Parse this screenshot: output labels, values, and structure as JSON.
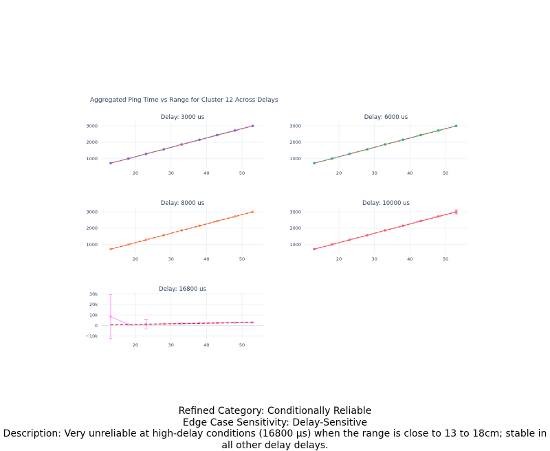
{
  "figure": {
    "title": "Aggregated Ping Time vs Range for Cluster 12 Across Delays"
  },
  "caption": {
    "category": "Refined Category: Conditionally Reliable",
    "sensitivity": "Edge Case Sensitivity: Delay-Sensitive",
    "description": "Description: Very unreliable at high-delay conditions (16800 µs) when the range is close to 13 to 18cm; stable in all other delay delays."
  },
  "chart_data": [
    {
      "type": "line",
      "title": "Delay: 3000 us",
      "x": [
        13,
        18,
        23,
        28,
        33,
        38,
        43,
        48,
        53
      ],
      "xlim": [
        10.5,
        56
      ],
      "xticks": [
        20,
        30,
        40,
        50
      ],
      "xtick_labels": [
        "20",
        "30",
        "40",
        "50"
      ],
      "ylim": [
        400,
        3300
      ],
      "yticks": [
        1000,
        2000,
        3000
      ],
      "ytick_labels": [
        "1000",
        "2000",
        "3000"
      ],
      "grid": true,
      "series": [
        {
          "values": [
            720,
            1000,
            1290,
            1570,
            1870,
            2150,
            2440,
            2720,
            3000
          ],
          "color": "#636efa",
          "style": "markers+line"
        },
        {
          "values": [
            720,
            1000,
            1290,
            1570,
            1860,
            2140,
            2430,
            2710,
            3000
          ],
          "color": "#ef553b",
          "style": "dash"
        }
      ]
    },
    {
      "type": "line",
      "title": "Delay: 6000 us",
      "x": [
        13,
        18,
        23,
        28,
        33,
        38,
        43,
        48,
        53
      ],
      "xlim": [
        10.5,
        56
      ],
      "xticks": [
        20,
        30,
        40,
        50
      ],
      "xtick_labels": [
        "20",
        "30",
        "40",
        "50"
      ],
      "ylim": [
        400,
        3300
      ],
      "yticks": [
        1000,
        2000,
        3000
      ],
      "ytick_labels": [
        "1000",
        "2000",
        "3000"
      ],
      "grid": true,
      "series": [
        {
          "values": [
            720,
            1000,
            1290,
            1570,
            1870,
            2150,
            2440,
            2720,
            3000
          ],
          "color": "#00cc96",
          "style": "markers+line"
        },
        {
          "values": [
            720,
            1000,
            1290,
            1570,
            1860,
            2140,
            2430,
            2710,
            3000
          ],
          "color": "#ef553b",
          "style": "dash"
        }
      ]
    },
    {
      "type": "line",
      "title": "Delay: 8000 us",
      "x": [
        13,
        18,
        23,
        28,
        33,
        38,
        43,
        48,
        53
      ],
      "xlim": [
        10.5,
        56
      ],
      "xticks": [
        20,
        30,
        40,
        50
      ],
      "xtick_labels": [
        "20",
        "30",
        "40",
        "50"
      ],
      "ylim": [
        400,
        3300
      ],
      "yticks": [
        1000,
        2000,
        3000
      ],
      "ytick_labels": [
        "1000",
        "2000",
        "3000"
      ],
      "grid": true,
      "series": [
        {
          "values": [
            720,
            1000,
            1290,
            1570,
            1870,
            2150,
            2440,
            2720,
            3000
          ],
          "color": "#ffa15a",
          "style": "markers+line"
        },
        {
          "values": [
            720,
            1000,
            1290,
            1570,
            1860,
            2140,
            2430,
            2710,
            3000
          ],
          "color": "#ef553b",
          "style": "dash"
        }
      ]
    },
    {
      "type": "line",
      "title": "Delay: 10000 us",
      "x": [
        13,
        18,
        23,
        28,
        33,
        38,
        43,
        48,
        53
      ],
      "xlim": [
        10.5,
        56
      ],
      "xticks": [
        20,
        30,
        40,
        50
      ],
      "xtick_labels": [
        "20",
        "30",
        "40",
        "50"
      ],
      "ylim": [
        400,
        3300
      ],
      "yticks": [
        1000,
        2000,
        3000
      ],
      "ytick_labels": [
        "1000",
        "2000",
        "3000"
      ],
      "grid": true,
      "series": [
        {
          "values": [
            720,
            1000,
            1290,
            1570,
            1870,
            2150,
            2440,
            2720,
            3000
          ],
          "color": "#ff6692",
          "style": "markers+line",
          "error": [
            0,
            0,
            0,
            0,
            0,
            0,
            0,
            0,
            120
          ]
        },
        {
          "values": [
            720,
            1000,
            1290,
            1570,
            1860,
            2140,
            2430,
            2710,
            3000
          ],
          "color": "#ef553b",
          "style": "dash"
        }
      ]
    },
    {
      "type": "line",
      "title": "Delay: 16800 us",
      "x": [
        13,
        18,
        23,
        28,
        33,
        38,
        43,
        48,
        53
      ],
      "xlim": [
        10.5,
        56
      ],
      "xticks": [
        20,
        30,
        40,
        50
      ],
      "xtick_labels": [
        "20",
        "30",
        "40",
        "50"
      ],
      "ylim": [
        -14000,
        31000
      ],
      "yticks": [
        -10000,
        0,
        10000,
        20000,
        30000
      ],
      "ytick_labels": [
        "−10k",
        "0",
        "10k",
        "20k",
        "30k"
      ],
      "grid": true,
      "series": [
        {
          "values": [
            8500,
            1000,
            1300,
            1570,
            1870,
            2150,
            2440,
            2720,
            3000
          ],
          "color": "#ff97ff",
          "style": "markers+line",
          "error": [
            21000,
            0,
            4600,
            0,
            0,
            0,
            0,
            0,
            0
          ]
        },
        {
          "values": [
            720,
            1000,
            1290,
            1570,
            1860,
            2140,
            2430,
            2710,
            3000
          ],
          "color": "#d62728",
          "style": "dash"
        }
      ]
    }
  ]
}
